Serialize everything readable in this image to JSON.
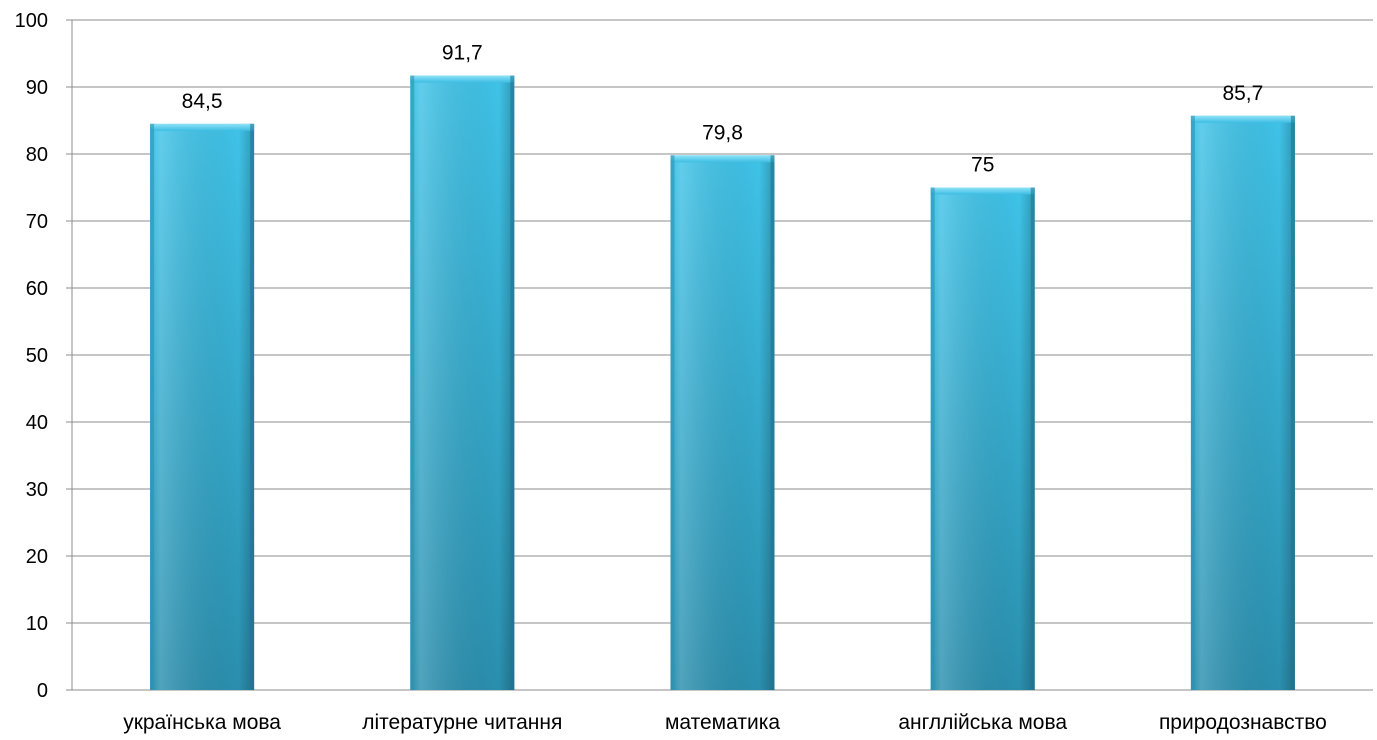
{
  "chart_data": {
    "type": "bar",
    "categories": [
      "українська мова",
      "літературне читання",
      "математика",
      "англлійська мова",
      "природознавство"
    ],
    "values": [
      84.5,
      91.7,
      79.8,
      75,
      85.7
    ],
    "data_labels": [
      "84,5",
      "91,7",
      "79,8",
      "75",
      "85,7"
    ],
    "title": "",
    "xlabel": "",
    "ylabel": "",
    "ylim": [
      0,
      100
    ],
    "yticks": [
      0,
      10,
      20,
      30,
      40,
      50,
      60,
      70,
      80,
      90,
      100
    ],
    "grid": true,
    "legend": "none",
    "bar_color": "#35b3d9",
    "bar_color_dark": "#1e7f9e"
  }
}
